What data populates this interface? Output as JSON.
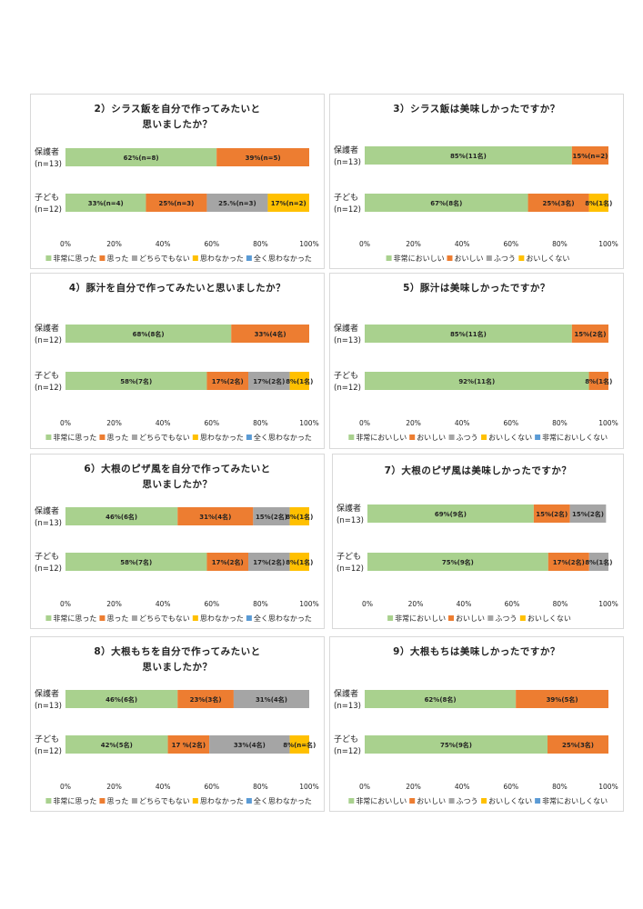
{
  "chart_data": [
    {
      "type": "bar",
      "stacked": "percent-horizontal",
      "title_lines": [
        "2）シラス飯を自分で作ってみたいと",
        "思いましたか？"
      ],
      "categories": [
        [
          "保護者",
          "(n=13)"
        ],
        [
          "子ども",
          "(n=12)"
        ]
      ],
      "xlim": [
        0,
        100
      ],
      "xticks": [
        "0%",
        "20%",
        "40%",
        "60%",
        "80%",
        "100%"
      ],
      "series": [
        {
          "name": "非常に思った",
          "color": "#a9d18e",
          "values": [
            62,
            33
          ],
          "labels": [
            "62%(n=8)",
            "33%(n=4)"
          ]
        },
        {
          "name": "思った",
          "color": "#ed7d31",
          "values": [
            39,
            25
          ],
          "labels": [
            "39%(n=5)",
            "25%(n=3)"
          ]
        },
        {
          "name": "どちらでもない",
          "color": "#a5a5a5",
          "values": [
            0,
            25
          ],
          "labels": [
            "",
            "25.%(n=3)"
          ]
        },
        {
          "name": "思わなかった",
          "color": "#ffc000",
          "values": [
            0,
            17
          ],
          "labels": [
            "",
            "17%(n=2)"
          ]
        },
        {
          "name": "全く思わなかった",
          "color": "#5b9bd5",
          "values": [
            0,
            0
          ],
          "labels": [
            "",
            ""
          ]
        }
      ]
    },
    {
      "type": "bar",
      "stacked": "percent-horizontal",
      "title_lines": [
        "3）シラス飯は美味しかったですか？"
      ],
      "categories": [
        [
          "保護者",
          "(n=13)"
        ],
        [
          "子ども",
          "(n=12)"
        ]
      ],
      "xlim": [
        0,
        100
      ],
      "xticks": [
        "0%",
        "20%",
        "40%",
        "60%",
        "80%",
        "100%"
      ],
      "series": [
        {
          "name": "非常においしい",
          "color": "#a9d18e",
          "values": [
            85,
            67
          ],
          "labels": [
            "85%(11名)",
            "67%(8名)"
          ]
        },
        {
          "name": "おいしい",
          "color": "#ed7d31",
          "values": [
            15,
            25
          ],
          "labels": [
            "15%(n=2)",
            "25%(3名)"
          ]
        },
        {
          "name": "ふつう",
          "color": "#a5a5a5",
          "values": [
            0,
            0
          ],
          "labels": [
            "",
            ""
          ]
        },
        {
          "name": "おいしくない",
          "color": "#ffc000",
          "values": [
            0,
            8
          ],
          "labels": [
            "",
            "8%(1名)"
          ]
        }
      ]
    },
    {
      "type": "bar",
      "stacked": "percent-horizontal",
      "title_lines": [
        "4）豚汁を自分で作ってみたいと思いましたか？"
      ],
      "categories": [
        [
          "保護者",
          "(n=12)"
        ],
        [
          "子ども",
          "(n=12)"
        ]
      ],
      "xlim": [
        0,
        100
      ],
      "xticks": [
        "0%",
        "20%",
        "40%",
        "60%",
        "80%",
        "100%"
      ],
      "series": [
        {
          "name": "非常に思った",
          "color": "#a9d18e",
          "values": [
            68,
            58
          ],
          "labels": [
            "68%(8名)",
            "58%(7名)"
          ]
        },
        {
          "name": "思った",
          "color": "#ed7d31",
          "values": [
            33,
            17
          ],
          "labels": [
            "33%(4名)",
            "17%(2名)"
          ]
        },
        {
          "name": "どちらでもない",
          "color": "#a5a5a5",
          "values": [
            0,
            17
          ],
          "labels": [
            "",
            "17%(2名)"
          ]
        },
        {
          "name": "思わなかった",
          "color": "#ffc000",
          "values": [
            0,
            8
          ],
          "labels": [
            "",
            "8%(1名)"
          ]
        },
        {
          "name": "全く思わなかった",
          "color": "#5b9bd5",
          "values": [
            0,
            0
          ],
          "labels": [
            "",
            ""
          ]
        }
      ]
    },
    {
      "type": "bar",
      "stacked": "percent-horizontal",
      "title_lines": [
        "5）豚汁は美味しかったですか？"
      ],
      "categories": [
        [
          "保護者",
          "(n=13)"
        ],
        [
          "子ども",
          "(n=12)"
        ]
      ],
      "xlim": [
        0,
        100
      ],
      "xticks": [
        "0%",
        "20%",
        "40%",
        "60%",
        "80%",
        "100%"
      ],
      "series": [
        {
          "name": "非常においしい",
          "color": "#a9d18e",
          "values": [
            85,
            92
          ],
          "labels": [
            "85%(11名)",
            "92%(11名)"
          ]
        },
        {
          "name": "おいしい",
          "color": "#ed7d31",
          "values": [
            15,
            8
          ],
          "labels": [
            "15%(2名)",
            "8%(1名)"
          ]
        },
        {
          "name": "ふつう",
          "color": "#a5a5a5",
          "values": [
            0,
            0
          ],
          "labels": [
            "",
            ""
          ]
        },
        {
          "name": "おいしくない",
          "color": "#ffc000",
          "values": [
            0,
            0
          ],
          "labels": [
            "",
            ""
          ]
        },
        {
          "name": "非常においしくない",
          "color": "#5b9bd5",
          "values": [
            0,
            0
          ],
          "labels": [
            "",
            ""
          ]
        }
      ]
    },
    {
      "type": "bar",
      "stacked": "percent-horizontal",
      "title_lines": [
        "6）大根のピザ風を自分で作ってみたいと",
        "思いましたか？"
      ],
      "categories": [
        [
          "保護者",
          "(n=13)"
        ],
        [
          "子ども",
          "(n=12)"
        ]
      ],
      "xlim": [
        0,
        100
      ],
      "xticks": [
        "0%",
        "20%",
        "40%",
        "60%",
        "80%",
        "100%"
      ],
      "series": [
        {
          "name": "非常に思った",
          "color": "#a9d18e",
          "values": [
            46,
            58
          ],
          "labels": [
            "46%(6名)",
            "58%(7名)"
          ]
        },
        {
          "name": "思った",
          "color": "#ed7d31",
          "values": [
            31,
            17
          ],
          "labels": [
            "31%(4名)",
            "17%(2名)"
          ]
        },
        {
          "name": "どちらでもない",
          "color": "#a5a5a5",
          "values": [
            15,
            17
          ],
          "labels": [
            "15%(2名)",
            "17%(2名)"
          ]
        },
        {
          "name": "思わなかった",
          "color": "#ffc000",
          "values": [
            8,
            8
          ],
          "labels": [
            "8%(1名)",
            "8%(1名)"
          ]
        },
        {
          "name": "全く思わなかった",
          "color": "#5b9bd5",
          "values": [
            0,
            0
          ],
          "labels": [
            "",
            ""
          ]
        }
      ]
    },
    {
      "type": "bar",
      "stacked": "percent-horizontal",
      "title_lines": [
        "7）大根のピザ風は美味しかったですか？"
      ],
      "categories": [
        [
          "保護者",
          "(n=13)"
        ],
        [
          "子ども",
          "(n=12)"
        ]
      ],
      "xlim": [
        0,
        100
      ],
      "xticks": [
        "0%",
        "20%",
        "40%",
        "60%",
        "80%",
        "100%"
      ],
      "series": [
        {
          "name": "非常においしい",
          "color": "#a9d18e",
          "values": [
            69,
            75
          ],
          "labels": [
            "69%(9名)",
            "75%(9名)"
          ]
        },
        {
          "name": "おいしい",
          "color": "#ed7d31",
          "values": [
            15,
            17
          ],
          "labels": [
            "15%(2名)",
            "17%(2名)"
          ]
        },
        {
          "name": "ふつう",
          "color": "#a5a5a5",
          "values": [
            15,
            8
          ],
          "labels": [
            "15%(2名)",
            "8%(1名)"
          ]
        },
        {
          "name": "おいしくない",
          "color": "#ffc000",
          "values": [
            0,
            0
          ],
          "labels": [
            "",
            ""
          ]
        }
      ]
    },
    {
      "type": "bar",
      "stacked": "percent-horizontal",
      "title_lines": [
        "8）大根もちを自分で作ってみたいと",
        "思いましたか？"
      ],
      "categories": [
        [
          "保護者",
          "(n=13)"
        ],
        [
          "子ども",
          "(n=12)"
        ]
      ],
      "xlim": [
        0,
        100
      ],
      "xticks": [
        "0%",
        "20%",
        "40%",
        "60%",
        "80%",
        "100%"
      ],
      "series": [
        {
          "name": "非常に思った",
          "color": "#a9d18e",
          "values": [
            46,
            42
          ],
          "labels": [
            "46%(6名)",
            "42%(5名)"
          ]
        },
        {
          "name": "思った",
          "color": "#ed7d31",
          "values": [
            23,
            17
          ],
          "labels": [
            "23%(3名)",
            "17 %(2名)"
          ]
        },
        {
          "name": "どちらでもない",
          "color": "#a5a5a5",
          "values": [
            31,
            33
          ],
          "labels": [
            "31%(4名)",
            "33%(4名)"
          ]
        },
        {
          "name": "思わなかった",
          "color": "#ffc000",
          "values": [
            0,
            8
          ],
          "labels": [
            "",
            "8%(n=名)"
          ]
        },
        {
          "name": "全く思わなかった",
          "color": "#5b9bd5",
          "values": [
            0,
            0
          ],
          "labels": [
            "",
            ""
          ]
        }
      ]
    },
    {
      "type": "bar",
      "stacked": "percent-horizontal",
      "title_lines": [
        "9）大根もちは美味しかったですか？"
      ],
      "categories": [
        [
          "保護者",
          "(n=13)"
        ],
        [
          "子ども",
          "(n=12)"
        ]
      ],
      "xlim": [
        0,
        100
      ],
      "xticks": [
        "0%",
        "20%",
        "40%",
        "60%",
        "80%",
        "100%"
      ],
      "series": [
        {
          "name": "非常においしい",
          "color": "#a9d18e",
          "values": [
            62,
            75
          ],
          "labels": [
            "62%(8名)",
            "75%(9名)"
          ]
        },
        {
          "name": "おいしい",
          "color": "#ed7d31",
          "values": [
            39,
            25
          ],
          "labels": [
            "39%(5名)",
            "25%(3名)"
          ]
        },
        {
          "name": "ふつう",
          "color": "#a5a5a5",
          "values": [
            0,
            0
          ],
          "labels": [
            "",
            ""
          ]
        },
        {
          "name": "おいしくない",
          "color": "#ffc000",
          "values": [
            0,
            0
          ],
          "labels": [
            "",
            ""
          ]
        },
        {
          "name": "非常においしくない",
          "color": "#5b9bd5",
          "values": [
            0,
            0
          ],
          "labels": [
            "",
            ""
          ]
        }
      ]
    }
  ]
}
